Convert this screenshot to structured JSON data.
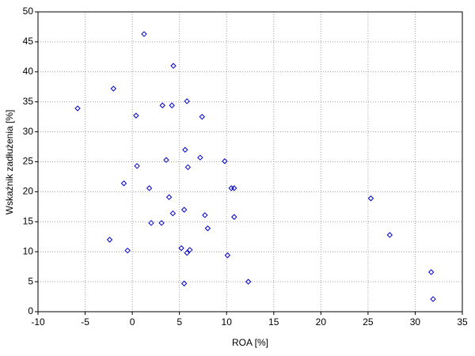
{
  "chart_data": {
    "type": "scatter",
    "x_label": "ROA [%]",
    "y_label": "Wskaźnik zadłużenia [%]",
    "marker_color": "#0000cc",
    "grid": true,
    "x": [
      1.25,
      4.36,
      -2.0,
      5.8,
      -5.8,
      3.2,
      4.2,
      0.4,
      7.4,
      5.6,
      7.2,
      3.6,
      9.8,
      0.5,
      5.9,
      -0.9,
      1.8,
      10.5,
      10.8,
      3.9,
      25.3,
      4.3,
      5.5,
      7.7,
      10.8,
      2.0,
      3.1,
      8.0,
      27.3,
      -2.4,
      -0.5,
      5.2,
      6.1,
      5.8,
      10.1,
      31.7,
      12.3,
      5.5,
      31.9
    ],
    "y": [
      46.3,
      41.0,
      37.2,
      35.1,
      33.9,
      34.4,
      34.4,
      32.7,
      32.5,
      27.0,
      25.7,
      25.3,
      25.1,
      24.3,
      24.1,
      21.4,
      20.6,
      20.6,
      20.6,
      19.1,
      18.9,
      16.4,
      17.0,
      16.1,
      15.8,
      14.8,
      14.8,
      13.9,
      12.8,
      12.0,
      10.2,
      10.6,
      10.3,
      9.8,
      9.4,
      6.6,
      5.0,
      4.7,
      2.1
    ],
    "xlim": [
      -10,
      35
    ],
    "xticks": [
      -10,
      -5,
      0,
      5,
      10,
      15,
      20,
      25,
      30,
      35
    ],
    "ylim": [
      0,
      50
    ],
    "yticks": [
      0,
      5,
      10,
      15,
      20,
      25,
      30,
      35,
      40,
      45,
      50
    ]
  }
}
